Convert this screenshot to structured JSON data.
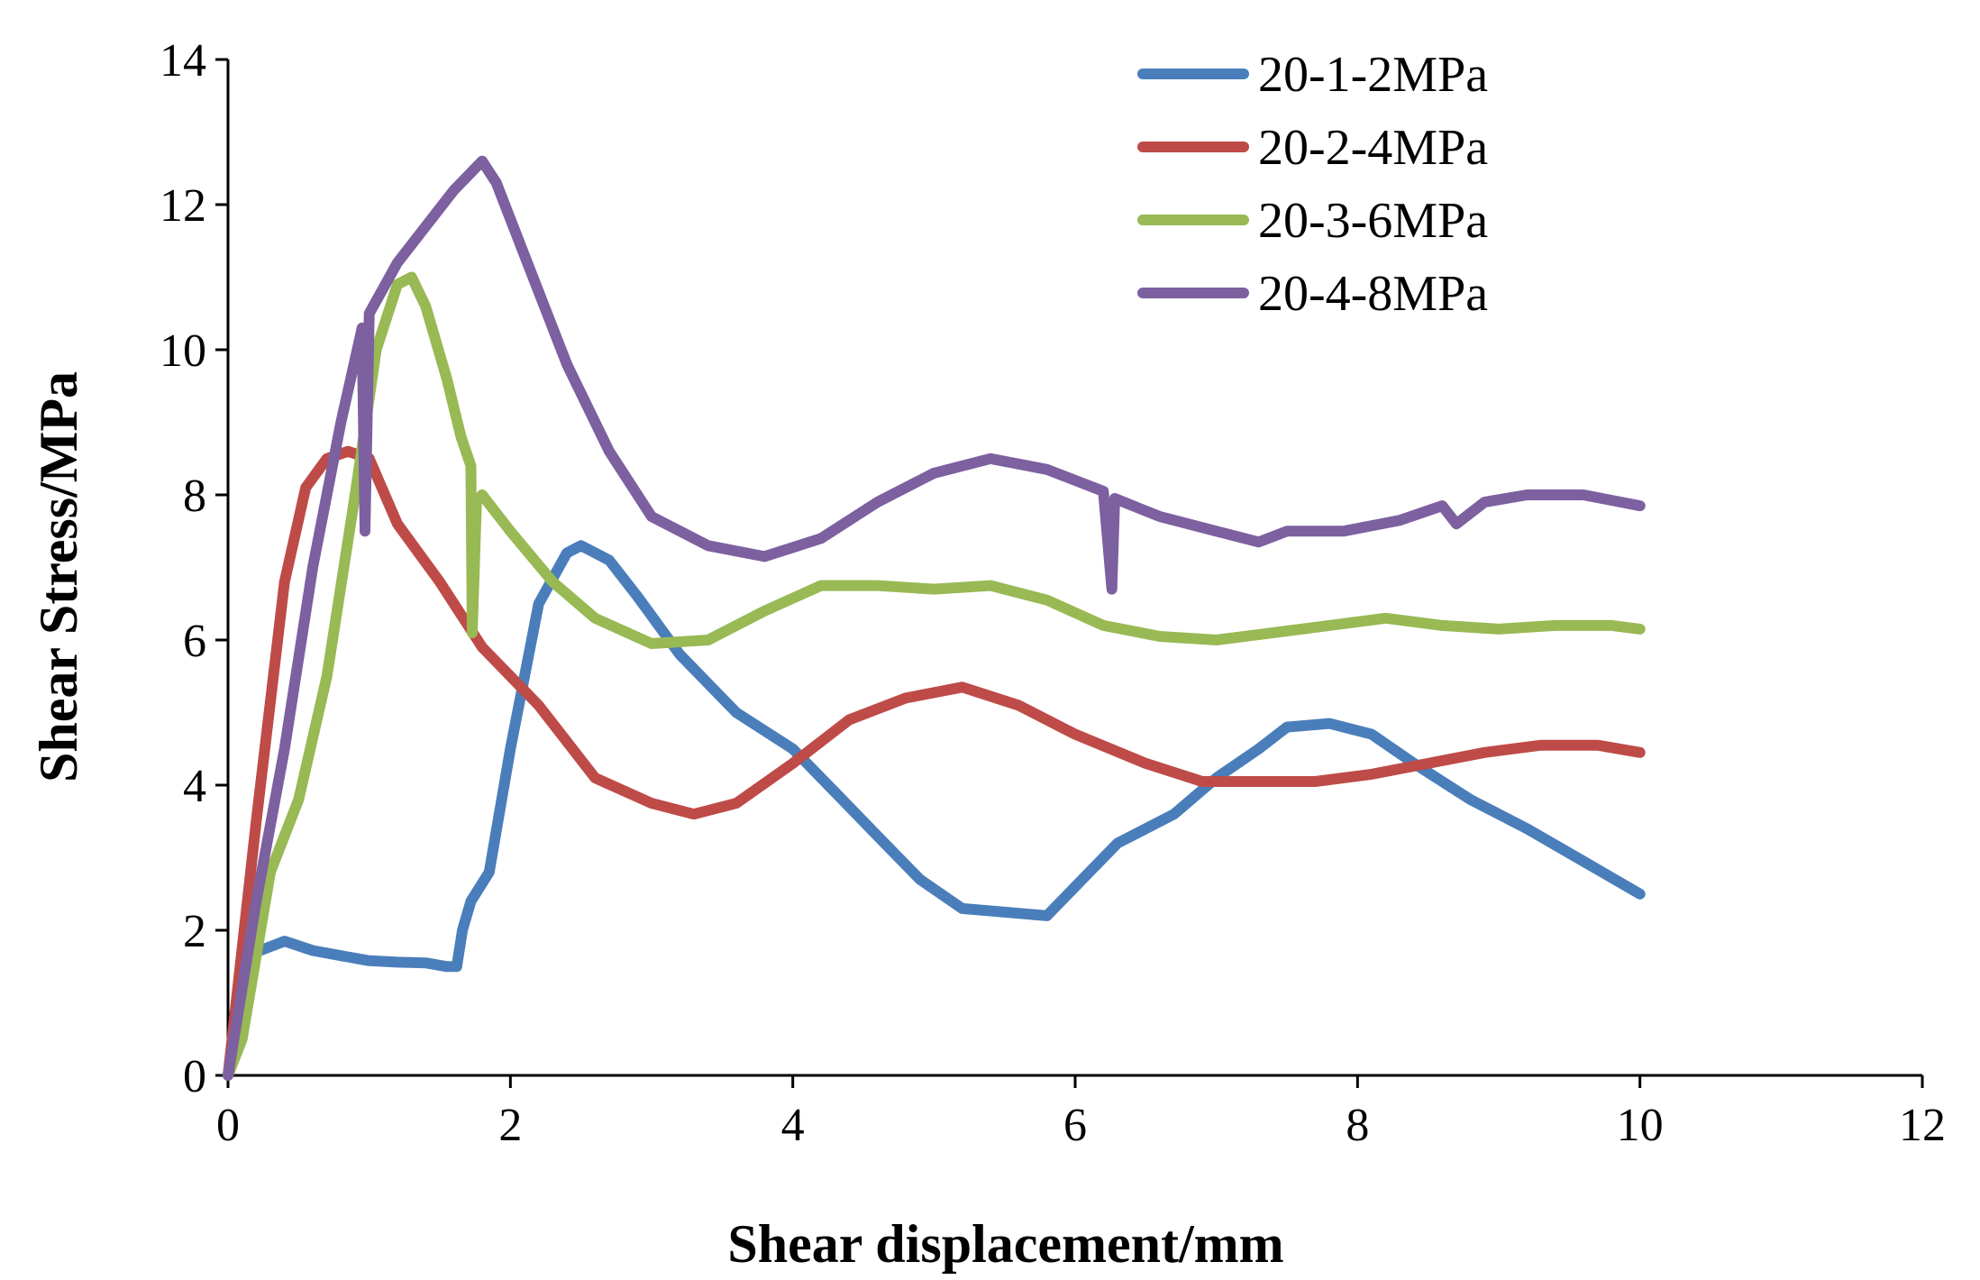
{
  "chart_data": {
    "type": "line",
    "title": "",
    "xlabel": "Shear displacement/mm",
    "ylabel": "Shear Stress/MPa",
    "xlim": [
      0,
      12
    ],
    "ylim": [
      0,
      14
    ],
    "xticks": [
      0,
      2,
      4,
      6,
      8,
      10,
      12
    ],
    "yticks": [
      0,
      2,
      4,
      6,
      8,
      10,
      12,
      14
    ],
    "legend": "top-right",
    "grid": false,
    "series": [
      {
        "name": "20-1-2MPa",
        "color": "#4a7ebb",
        "points": [
          [
            0,
            0
          ],
          [
            0.1,
            1.2
          ],
          [
            0.2,
            1.7
          ],
          [
            0.4,
            1.85
          ],
          [
            0.6,
            1.72
          ],
          [
            0.8,
            1.65
          ],
          [
            1.0,
            1.58
          ],
          [
            1.2,
            1.56
          ],
          [
            1.4,
            1.55
          ],
          [
            1.55,
            1.5
          ],
          [
            1.62,
            1.5
          ],
          [
            1.66,
            2.0
          ],
          [
            1.72,
            2.4
          ],
          [
            1.85,
            2.8
          ],
          [
            2.0,
            4.5
          ],
          [
            2.2,
            6.5
          ],
          [
            2.4,
            7.2
          ],
          [
            2.5,
            7.3
          ],
          [
            2.7,
            7.1
          ],
          [
            2.9,
            6.6
          ],
          [
            3.2,
            5.8
          ],
          [
            3.6,
            5.0
          ],
          [
            4.0,
            4.5
          ],
          [
            4.3,
            3.9
          ],
          [
            4.6,
            3.3
          ],
          [
            4.9,
            2.7
          ],
          [
            5.2,
            2.3
          ],
          [
            5.5,
            2.25
          ],
          [
            5.8,
            2.2
          ],
          [
            6.0,
            2.6
          ],
          [
            6.3,
            3.2
          ],
          [
            6.7,
            3.6
          ],
          [
            7.0,
            4.1
          ],
          [
            7.3,
            4.5
          ],
          [
            7.5,
            4.8
          ],
          [
            7.8,
            4.85
          ],
          [
            8.1,
            4.7
          ],
          [
            8.4,
            4.3
          ],
          [
            8.8,
            3.8
          ],
          [
            9.2,
            3.4
          ],
          [
            9.6,
            2.95
          ],
          [
            10.0,
            2.5
          ]
        ]
      },
      {
        "name": "20-2-4MPa",
        "color": "#be4b48",
        "points": [
          [
            0,
            0
          ],
          [
            0.2,
            3.5
          ],
          [
            0.4,
            6.8
          ],
          [
            0.55,
            8.1
          ],
          [
            0.7,
            8.5
          ],
          [
            0.85,
            8.6
          ],
          [
            1.0,
            8.5
          ],
          [
            1.2,
            7.6
          ],
          [
            1.5,
            6.8
          ],
          [
            1.8,
            5.9
          ],
          [
            2.2,
            5.1
          ],
          [
            2.6,
            4.1
          ],
          [
            3.0,
            3.75
          ],
          [
            3.3,
            3.6
          ],
          [
            3.6,
            3.75
          ],
          [
            4.0,
            4.3
          ],
          [
            4.4,
            4.9
          ],
          [
            4.8,
            5.2
          ],
          [
            5.2,
            5.35
          ],
          [
            5.6,
            5.1
          ],
          [
            6.0,
            4.7
          ],
          [
            6.5,
            4.3
          ],
          [
            6.9,
            4.05
          ],
          [
            7.3,
            4.05
          ],
          [
            7.7,
            4.05
          ],
          [
            8.1,
            4.15
          ],
          [
            8.5,
            4.3
          ],
          [
            8.9,
            4.45
          ],
          [
            9.3,
            4.55
          ],
          [
            9.7,
            4.55
          ],
          [
            10.0,
            4.45
          ]
        ]
      },
      {
        "name": "20-3-6MPa",
        "color": "#98b954",
        "points": [
          [
            0,
            0
          ],
          [
            0.1,
            0.5
          ],
          [
            0.3,
            2.8
          ],
          [
            0.5,
            3.8
          ],
          [
            0.7,
            5.5
          ],
          [
            0.9,
            8.0
          ],
          [
            1.05,
            10.0
          ],
          [
            1.2,
            10.9
          ],
          [
            1.3,
            11.0
          ],
          [
            1.4,
            10.6
          ],
          [
            1.55,
            9.6
          ],
          [
            1.65,
            8.8
          ],
          [
            1.72,
            8.4
          ],
          [
            1.73,
            6.1
          ],
          [
            1.76,
            7.9
          ],
          [
            1.8,
            8.0
          ],
          [
            2.0,
            7.5
          ],
          [
            2.3,
            6.8
          ],
          [
            2.6,
            6.3
          ],
          [
            3.0,
            5.95
          ],
          [
            3.4,
            6.0
          ],
          [
            3.8,
            6.4
          ],
          [
            4.2,
            6.75
          ],
          [
            4.6,
            6.75
          ],
          [
            5.0,
            6.7
          ],
          [
            5.4,
            6.75
          ],
          [
            5.8,
            6.55
          ],
          [
            6.2,
            6.2
          ],
          [
            6.6,
            6.05
          ],
          [
            7.0,
            6.0
          ],
          [
            7.4,
            6.1
          ],
          [
            7.8,
            6.2
          ],
          [
            8.2,
            6.3
          ],
          [
            8.6,
            6.2
          ],
          [
            9.0,
            6.15
          ],
          [
            9.4,
            6.2
          ],
          [
            9.8,
            6.2
          ],
          [
            10.0,
            6.15
          ]
        ]
      },
      {
        "name": "20-4-8MPa",
        "color": "#7d60a0",
        "points": [
          [
            0,
            0
          ],
          [
            0.2,
            2.4
          ],
          [
            0.4,
            4.5
          ],
          [
            0.6,
            7.0
          ],
          [
            0.8,
            9.0
          ],
          [
            0.95,
            10.3
          ],
          [
            0.97,
            7.5
          ],
          [
            1.0,
            10.5
          ],
          [
            1.2,
            11.2
          ],
          [
            1.4,
            11.7
          ],
          [
            1.6,
            12.2
          ],
          [
            1.8,
            12.6
          ],
          [
            1.9,
            12.3
          ],
          [
            2.1,
            11.3
          ],
          [
            2.4,
            9.8
          ],
          [
            2.7,
            8.6
          ],
          [
            3.0,
            7.7
          ],
          [
            3.4,
            7.3
          ],
          [
            3.8,
            7.15
          ],
          [
            4.2,
            7.4
          ],
          [
            4.6,
            7.9
          ],
          [
            5.0,
            8.3
          ],
          [
            5.4,
            8.5
          ],
          [
            5.8,
            8.35
          ],
          [
            6.2,
            8.05
          ],
          [
            6.26,
            6.7
          ],
          [
            6.28,
            7.95
          ],
          [
            6.6,
            7.7
          ],
          [
            7.0,
            7.5
          ],
          [
            7.3,
            7.35
          ],
          [
            7.5,
            7.5
          ],
          [
            7.9,
            7.5
          ],
          [
            8.3,
            7.65
          ],
          [
            8.6,
            7.85
          ],
          [
            8.7,
            7.6
          ],
          [
            8.9,
            7.9
          ],
          [
            9.2,
            8.0
          ],
          [
            9.6,
            8.0
          ],
          [
            10.0,
            7.85
          ]
        ]
      }
    ]
  }
}
